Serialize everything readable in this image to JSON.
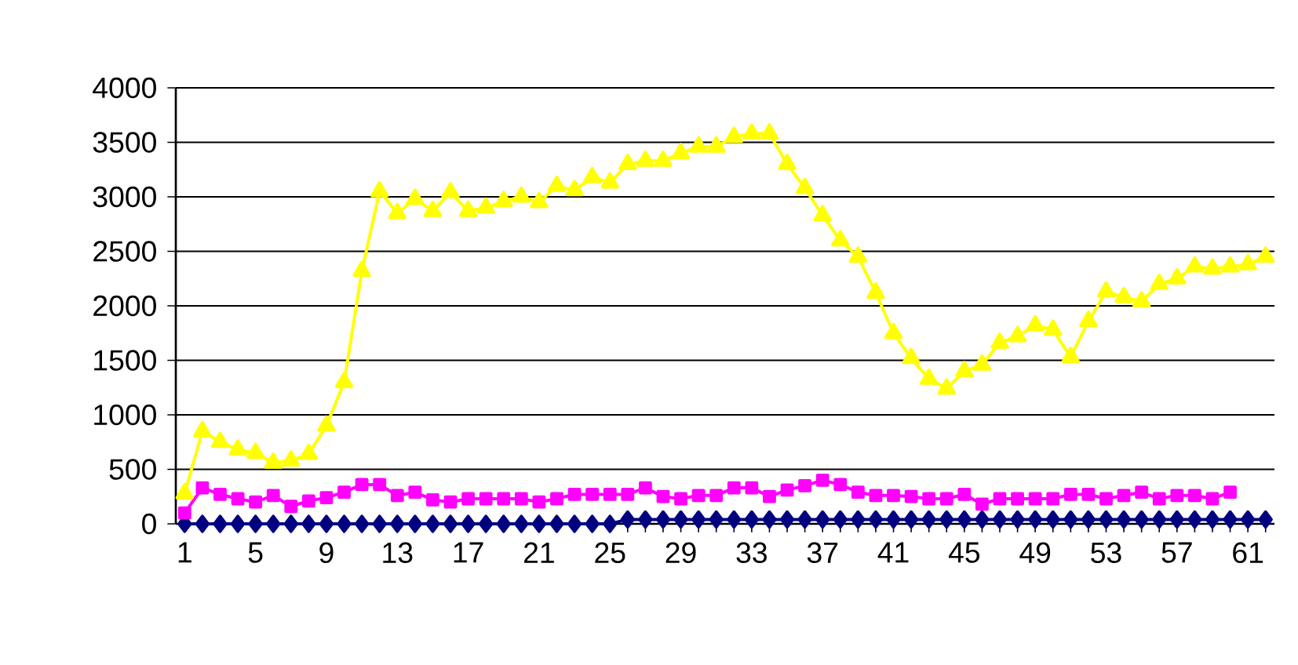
{
  "chart_data": {
    "type": "line",
    "categories": [
      "1",
      null,
      null,
      null,
      "5",
      null,
      null,
      null,
      "9",
      null,
      null,
      null,
      "13",
      null,
      null,
      null,
      "17",
      null,
      null,
      null,
      "21",
      null,
      null,
      null,
      "25",
      null,
      null,
      null,
      "29",
      null,
      null,
      null,
      "33",
      null,
      null,
      null,
      "37",
      null,
      null,
      null,
      "41",
      null,
      null,
      null,
      "45",
      null,
      null,
      null,
      "49",
      null,
      null,
      null,
      "53",
      null,
      null,
      null,
      "57",
      null,
      null,
      null,
      "61",
      null
    ],
    "series": [
      {
        "color": "#000080",
        "marker": "diamond",
        "values": [
          0,
          0,
          0,
          0,
          0,
          0,
          0,
          0,
          0,
          0,
          0,
          0,
          0,
          0,
          0,
          0,
          0,
          0,
          0,
          0,
          0,
          0,
          0,
          0,
          0,
          40,
          40,
          40,
          40,
          40,
          40,
          40,
          40,
          40,
          40,
          40,
          40,
          40,
          40,
          40,
          40,
          40,
          40,
          40,
          40,
          40,
          40,
          40,
          40,
          40,
          40,
          40,
          40,
          40,
          40,
          40,
          40,
          40,
          40,
          40,
          40,
          40
        ]
      },
      {
        "color": "#ff00ff",
        "marker": "square",
        "values": [
          100,
          330,
          270,
          230,
          200,
          260,
          160,
          210,
          240,
          290,
          360,
          360,
          260,
          290,
          220,
          200,
          230,
          230,
          230,
          230,
          200,
          230,
          270,
          270,
          270,
          270,
          330,
          250,
          230,
          260,
          260,
          330,
          330,
          250,
          310,
          350,
          400,
          360,
          290,
          260,
          260,
          250,
          230,
          230,
          270,
          180,
          230,
          230,
          230,
          230,
          270,
          270,
          230,
          260,
          290,
          230,
          260,
          260,
          230,
          290,
          null,
          null
        ]
      },
      {
        "color": "#ffff00",
        "marker": "triangle",
        "values": [
          280,
          850,
          750,
          680,
          650,
          560,
          580,
          640,
          900,
          1300,
          2320,
          3050,
          2850,
          2980,
          2870,
          3040,
          2870,
          2900,
          2960,
          3000,
          2950,
          3100,
          3060,
          3180,
          3130,
          3300,
          3330,
          3330,
          3400,
          3460,
          3460,
          3550,
          3580,
          3580,
          3300,
          3080,
          2830,
          2600,
          2450,
          2120,
          1750,
          1520,
          1330,
          1240,
          1400,
          1460,
          1660,
          1720,
          1820,
          1780,
          1530,
          1860,
          2130,
          2080,
          2040,
          2200,
          2250,
          2360,
          2340,
          2360,
          2380,
          2450
        ]
      }
    ],
    "ylim": [
      0,
      4000
    ],
    "yticks": [
      0,
      500,
      1000,
      1500,
      2000,
      2500,
      3000,
      3500,
      4000
    ],
    "grid": "y",
    "line_style": "solid"
  }
}
